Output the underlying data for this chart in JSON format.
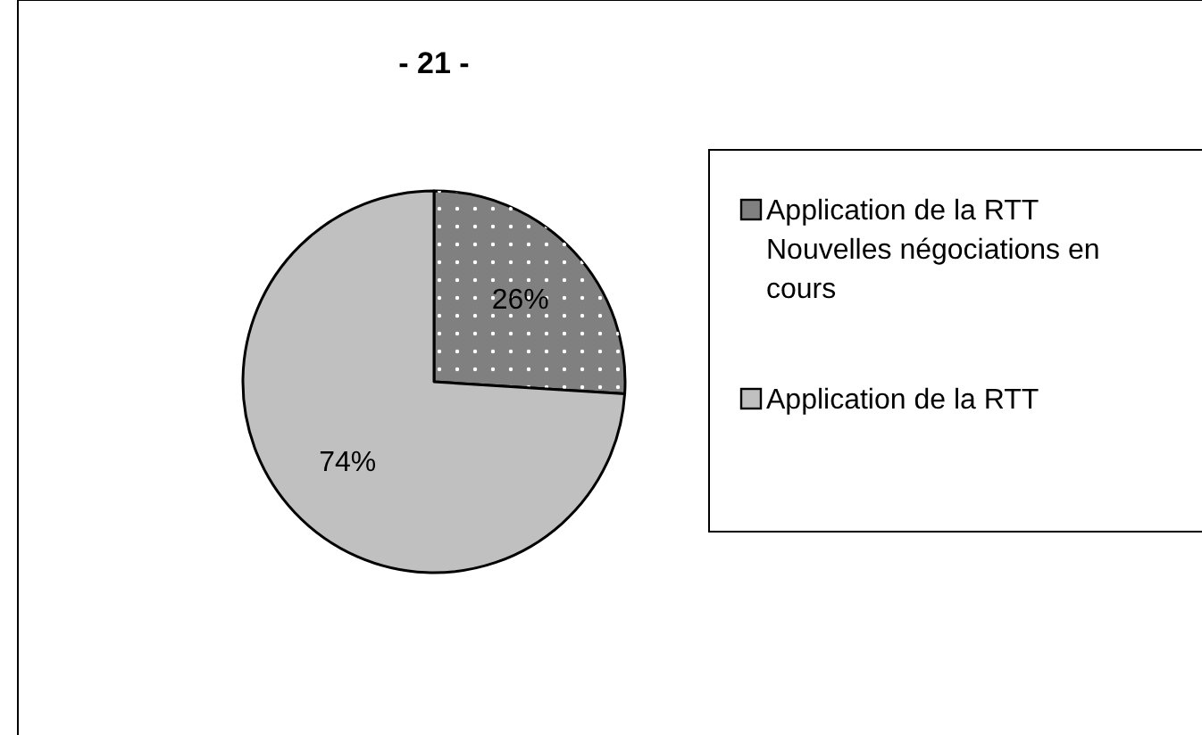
{
  "chart_data": {
    "type": "pie",
    "title": "- 21 -",
    "categories": [
      "Application de la RTT Nouvelles négociations en cours",
      "Application de la RTT"
    ],
    "values": [
      26,
      74
    ],
    "value_labels": [
      "26%",
      "74%"
    ],
    "colors": [
      "#808080",
      "#c0c0c0"
    ],
    "legend": "right"
  }
}
